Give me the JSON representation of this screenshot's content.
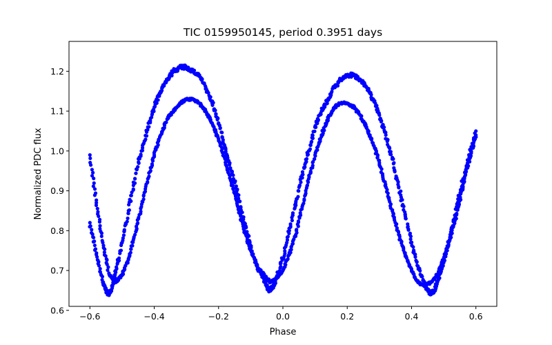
{
  "chart_data": {
    "type": "scatter",
    "title": "TIC 0159950145, period 0.3951 days",
    "xlabel": "Phase",
    "ylabel": "Normalized PDC flux",
    "xlim": [
      -0.665,
      0.665
    ],
    "ylim": [
      0.61,
      1.275
    ],
    "xticks": [
      -0.6,
      -0.4,
      -0.2,
      0.0,
      0.2,
      0.4,
      0.6
    ],
    "xtick_labels": [
      "−0.6",
      "−0.4",
      "−0.2",
      "0.0",
      "0.2",
      "0.4",
      "0.6"
    ],
    "yticks": [
      0.6,
      0.7,
      0.8,
      0.9,
      1.0,
      1.1,
      1.2
    ],
    "ytick_labels": [
      "0.6",
      "0.7",
      "0.8",
      "0.9",
      "1.0",
      "1.1",
      "1.2"
    ],
    "grid": false,
    "legend": "none",
    "marker_color": "#0000ff",
    "description_of_data": "phase-folded light curve, roughly sinusoidal with two cycles",
    "series": [
      {
        "name": "",
        "x": [
          -0.6,
          -0.58,
          -0.56,
          -0.55,
          -0.54,
          -0.53,
          -0.52,
          -0.5,
          -0.48,
          -0.46,
          -0.44,
          -0.42,
          -0.4,
          -0.38,
          -0.36,
          -0.34,
          -0.32,
          -0.3,
          -0.28,
          -0.26,
          -0.24,
          -0.22,
          -0.2,
          -0.18,
          -0.16,
          -0.14,
          -0.12,
          -0.1,
          -0.08,
          -0.06,
          -0.05,
          -0.04,
          -0.03,
          -0.02,
          0.0,
          0.02,
          0.04,
          0.06,
          0.08,
          0.1,
          0.12,
          0.14,
          0.16,
          0.18,
          0.2,
          0.22,
          0.24,
          0.26,
          0.28,
          0.3,
          0.32,
          0.34,
          0.36,
          0.38,
          0.4,
          0.42,
          0.44,
          0.45,
          0.46,
          0.47,
          0.48,
          0.5,
          0.52,
          0.54,
          0.56,
          0.58,
          0.6
        ],
        "y": [
          0.82,
          0.74,
          0.67,
          0.65,
          0.64,
          0.66,
          0.7,
          0.77,
          0.85,
          0.93,
          1.0,
          1.06,
          1.11,
          1.15,
          1.18,
          1.2,
          1.21,
          1.21,
          1.2,
          1.19,
          1.16,
          1.12,
          1.07,
          1.01,
          0.95,
          0.89,
          0.82,
          0.76,
          0.71,
          0.68,
          0.66,
          0.65,
          0.66,
          0.68,
          0.73,
          0.8,
          0.87,
          0.94,
          1.0,
          1.06,
          1.1,
          1.13,
          1.16,
          1.18,
          1.19,
          1.19,
          1.18,
          1.16,
          1.13,
          1.09,
          1.04,
          0.98,
          0.91,
          0.84,
          0.77,
          0.71,
          0.67,
          0.65,
          0.64,
          0.65,
          0.67,
          0.72,
          0.79,
          0.86,
          0.93,
          0.99,
          1.05
        ]
      },
      {
        "name": "",
        "x": [
          -0.6,
          -0.58,
          -0.56,
          -0.54,
          -0.52,
          -0.5,
          -0.48,
          -0.46,
          -0.44,
          -0.42,
          -0.4,
          -0.38,
          -0.36,
          -0.34,
          -0.32,
          -0.3,
          -0.28,
          -0.26,
          -0.24,
          -0.22,
          -0.2,
          -0.18,
          -0.16,
          -0.14,
          -0.12,
          -0.1,
          -0.08,
          -0.06,
          -0.04,
          -0.02,
          0.0,
          0.02,
          0.04,
          0.06,
          0.08,
          0.1,
          0.12,
          0.14,
          0.16,
          0.18,
          0.2,
          0.22,
          0.24,
          0.26,
          0.28,
          0.3,
          0.32,
          0.34,
          0.36,
          0.38,
          0.4,
          0.42,
          0.44,
          0.46,
          0.48,
          0.5,
          0.52,
          0.54,
          0.56,
          0.58,
          0.6
        ],
        "y": [
          0.99,
          0.87,
          0.77,
          0.69,
          0.67,
          0.69,
          0.73,
          0.79,
          0.86,
          0.93,
          0.99,
          1.04,
          1.08,
          1.1,
          1.12,
          1.13,
          1.13,
          1.12,
          1.1,
          1.07,
          1.03,
          0.98,
          0.92,
          0.86,
          0.8,
          0.75,
          0.71,
          0.69,
          0.67,
          0.68,
          0.7,
          0.74,
          0.79,
          0.86,
          0.93,
          0.99,
          1.04,
          1.08,
          1.11,
          1.12,
          1.12,
          1.11,
          1.09,
          1.06,
          1.02,
          0.97,
          0.91,
          0.85,
          0.79,
          0.74,
          0.7,
          0.67,
          0.66,
          0.67,
          0.69,
          0.73,
          0.78,
          0.84,
          0.91,
          0.98,
          1.04
        ]
      }
    ]
  }
}
